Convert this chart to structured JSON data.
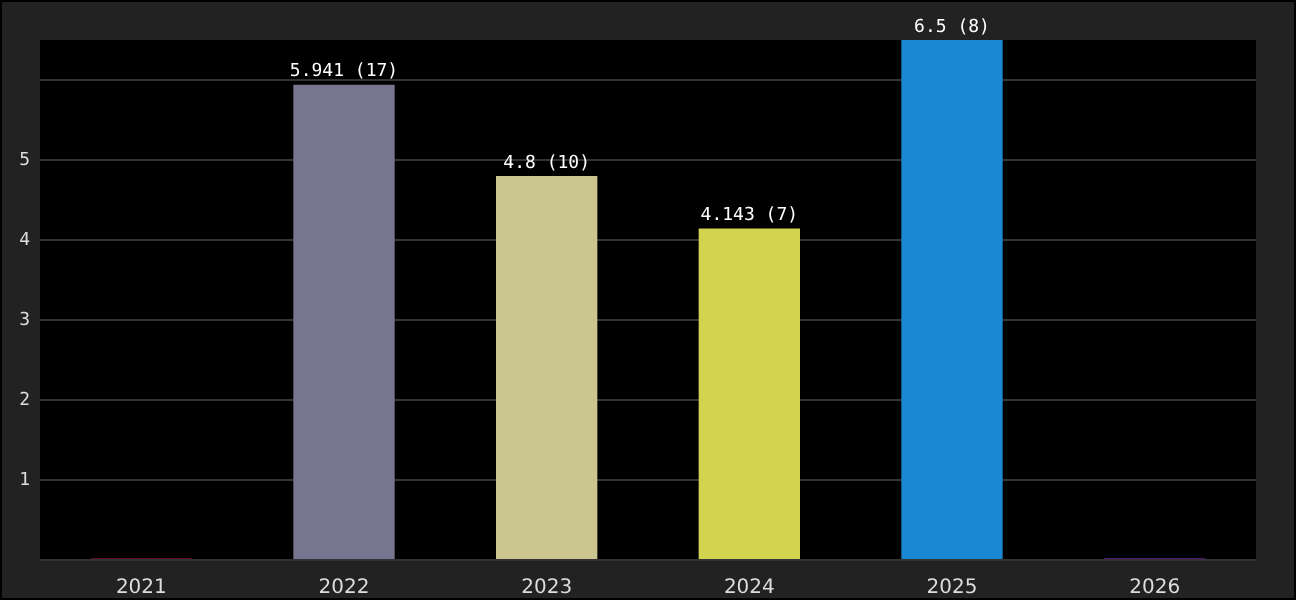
{
  "chart_data": {
    "type": "bar",
    "categories": [
      "2021",
      "2022",
      "2023",
      "2024",
      "2025",
      "2026"
    ],
    "values": [
      0.02,
      5.941,
      4.8,
      4.143,
      6.5,
      0.02
    ],
    "colors": [
      "#c2185b",
      "#77758f",
      "#cbc58f",
      "#d2d450",
      "#1a87d3",
      "#9b30d9"
    ],
    "value_labels": [
      null,
      "5.941 (17)",
      "4.8 (10)",
      "4.143 (7)",
      "6.5 (8)",
      null
    ],
    "ylim": [
      0,
      6.5
    ],
    "yticks": [
      {
        "value": 0,
        "label": null
      },
      1,
      2,
      3,
      4,
      5,
      {
        "value": 6,
        "label": null
      }
    ],
    "grid": "y",
    "legend": false
  }
}
